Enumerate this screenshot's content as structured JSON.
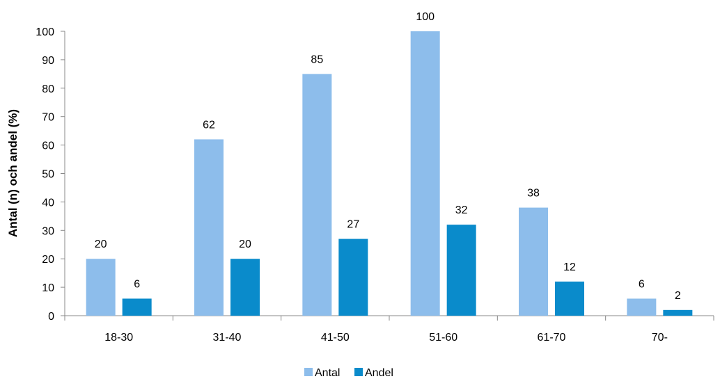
{
  "chart_data": {
    "type": "bar",
    "title": "",
    "xlabel": "",
    "ylabel": "Antal (n) och andel (%)",
    "categories": [
      "18-30",
      "31-40",
      "41-50",
      "51-60",
      "61-70",
      "70-"
    ],
    "series": [
      {
        "name": "Antal",
        "values": [
          20,
          62,
          85,
          100,
          38,
          6
        ],
        "color": "#8DBDEB"
      },
      {
        "name": "Andel",
        "values": [
          6,
          20,
          27,
          32,
          12,
          2
        ],
        "color": "#0A8BCB"
      }
    ],
    "ylim": [
      0,
      100
    ],
    "yticks": [
      0,
      10,
      20,
      30,
      40,
      50,
      60,
      70,
      80,
      90,
      100
    ],
    "grid": false,
    "legend_position": "bottom-center",
    "data_labels": true
  }
}
